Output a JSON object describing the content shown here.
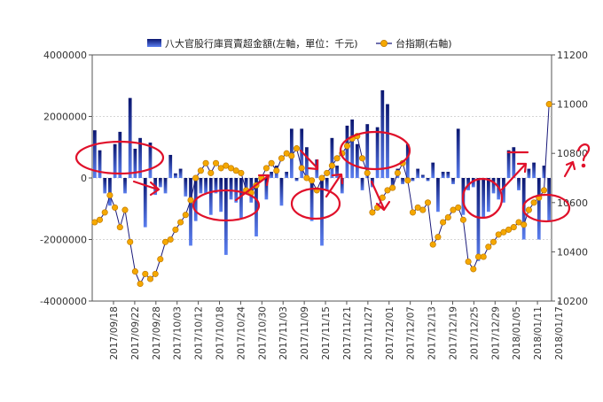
{
  "legend": {
    "bar_label": "八大官股行庫買賣超金額(左軸，單位：千元)",
    "line_label": "台指期(右軸)"
  },
  "colors": {
    "bar_top": "#0a1670",
    "bar_bottom": "#5b7ff0",
    "line": "#1a1a7a",
    "marker_fill": "#f5a800",
    "marker_stroke": "#c07a00",
    "annotation": "#e0102a",
    "grid": "#c8c8c8"
  },
  "chart_data": {
    "type": "bar+line",
    "y_left": {
      "ticks": [
        "4000000",
        "2000000",
        "0",
        "-2000000",
        "-4000000"
      ],
      "range": [
        -4000000,
        4000000
      ]
    },
    "y_right": {
      "ticks": [
        "11200",
        "11000",
        "10800",
        "10600",
        "10400",
        "10200"
      ],
      "range": [
        10200,
        11200
      ]
    },
    "x_tick_labels": [
      "2017/09/18",
      "2017/09/22",
      "2017/09/28",
      "2017/10/03",
      "2017/10/12",
      "2017/10/18",
      "2017/10/24",
      "2017/10/30",
      "2017/11/03",
      "2017/11/09",
      "2017/11/15",
      "2017/11/21",
      "2017/11/27",
      "2017/12/01",
      "2017/12/07",
      "2017/12/13",
      "2017/12/19",
      "2017/12/25",
      "2017/12/29",
      "2018/01/05",
      "2018/01/11",
      "2018/01/17"
    ],
    "series": [
      {
        "name": "八大官股行庫買賣超金額(左軸，單位：千元)",
        "type": "bar",
        "values": [
          1550000,
          900000,
          -500000,
          -900000,
          1100000,
          1500000,
          -500000,
          2600000,
          950000,
          1300000,
          -1600000,
          1150000,
          -550000,
          -300000,
          -500000,
          750000,
          150000,
          300000,
          -600000,
          -2200000,
          -1400000,
          -500000,
          -500000,
          -1200000,
          -500000,
          -1100000,
          -2500000,
          -700000,
          -800000,
          -1300000,
          -500000,
          -800000,
          -1900000,
          0,
          -700000,
          200000,
          400000,
          -900000,
          200000,
          1600000,
          -100000,
          1600000,
          1000000,
          -1400000,
          600000,
          -2200000,
          -400000,
          1300000,
          400000,
          -500000,
          1700000,
          1900000,
          1100000,
          -400000,
          1750000,
          -300000,
          1650000,
          2850000,
          2400000,
          -400000,
          300000,
          -200000,
          1100000,
          -100000,
          300000,
          100000,
          -100000,
          500000,
          -1100000,
          200000,
          200000,
          -200000,
          1600000,
          -1200000,
          -400000,
          -300000,
          -2700000,
          -1300000,
          -1100000,
          -500000,
          -700000,
          -800000,
          900000,
          1000000,
          -400000,
          -2000000,
          300000,
          500000,
          -2000000,
          400000,
          -1400000
        ],
        "ylabels_note": ""
      },
      {
        "name": "台指期(右軸)",
        "type": "line",
        "values": [
          10520,
          10530,
          10560,
          10630,
          10580,
          10500,
          10570,
          10440,
          10320,
          10270,
          10310,
          10290,
          10310,
          10370,
          10440,
          10450,
          10490,
          10520,
          10550,
          10610,
          10700,
          10730,
          10760,
          10720,
          10760,
          10740,
          10750,
          10740,
          10730,
          10720,
          10650,
          10640,
          10670,
          10700,
          10740,
          10760,
          10730,
          10780,
          10800,
          10790,
          10820,
          10740,
          10700,
          10690,
          10650,
          10700,
          10720,
          10750,
          10780,
          10800,
          10830,
          10860,
          10870,
          10780,
          10720,
          10560,
          10580,
          10620,
          10650,
          10660,
          10720,
          10760,
          10690,
          10560,
          10580,
          10570,
          10600,
          10430,
          10460,
          10520,
          10540,
          10570,
          10580,
          10530,
          10360,
          10330,
          10380,
          10380,
          10420,
          10440,
          10470,
          10480,
          10490,
          10500,
          10520,
          10510,
          10570,
          10600,
          10620,
          10650,
          11000
        ]
      }
    ],
    "grid": true,
    "legend_position": "top-center"
  }
}
